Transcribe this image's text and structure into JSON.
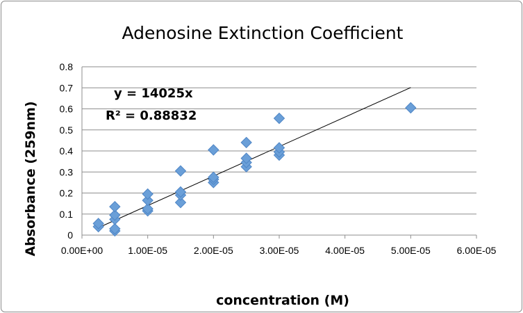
{
  "chart_data": {
    "type": "scatter",
    "title": "Adenosine Extinction Coefficient",
    "xlabel": "concentration (M)",
    "ylabel": "Absorbance (259nm)",
    "xlim": [
      0,
      6e-05
    ],
    "ylim": [
      0,
      0.8
    ],
    "x_ticks": [
      "0.00E+00",
      "1.00E-05",
      "2.00E-05",
      "3.00E-05",
      "4.00E-05",
      "5.00E-05",
      "6.00E-05"
    ],
    "y_ticks": [
      "0",
      "0.1",
      "0.2",
      "0.3",
      "0.4",
      "0.5",
      "0.6",
      "0.7",
      "0.8"
    ],
    "grid": "horizontal",
    "marker": "diamond",
    "marker_color": "#6a9fd8",
    "trendline_color": "#000000",
    "points": [
      {
        "x": 2.5e-06,
        "y": 0.04
      },
      {
        "x": 2.5e-06,
        "y": 0.055
      },
      {
        "x": 5e-06,
        "y": 0.02
      },
      {
        "x": 5e-06,
        "y": 0.03
      },
      {
        "x": 5e-06,
        "y": 0.075
      },
      {
        "x": 5e-06,
        "y": 0.095
      },
      {
        "x": 5e-06,
        "y": 0.135
      },
      {
        "x": 1e-05,
        "y": 0.115
      },
      {
        "x": 1e-05,
        "y": 0.125
      },
      {
        "x": 1e-05,
        "y": 0.165
      },
      {
        "x": 1e-05,
        "y": 0.195
      },
      {
        "x": 1.5e-05,
        "y": 0.155
      },
      {
        "x": 1.5e-05,
        "y": 0.19
      },
      {
        "x": 1.5e-05,
        "y": 0.205
      },
      {
        "x": 1.5e-05,
        "y": 0.305
      },
      {
        "x": 2e-05,
        "y": 0.25
      },
      {
        "x": 2e-05,
        "y": 0.265
      },
      {
        "x": 2e-05,
        "y": 0.275
      },
      {
        "x": 2e-05,
        "y": 0.405
      },
      {
        "x": 2.5e-05,
        "y": 0.325
      },
      {
        "x": 2.5e-05,
        "y": 0.345
      },
      {
        "x": 2.5e-05,
        "y": 0.365
      },
      {
        "x": 2.5e-05,
        "y": 0.44
      },
      {
        "x": 3e-05,
        "y": 0.38
      },
      {
        "x": 3e-05,
        "y": 0.395
      },
      {
        "x": 3e-05,
        "y": 0.415
      },
      {
        "x": 3e-05,
        "y": 0.555
      },
      {
        "x": 5e-05,
        "y": 0.605
      }
    ],
    "trendline": {
      "slope": 14025,
      "x_range": [
        2.5e-06,
        5e-05
      ],
      "equation": "y = 14025x",
      "r_squared": "R² = 0.88832"
    }
  }
}
